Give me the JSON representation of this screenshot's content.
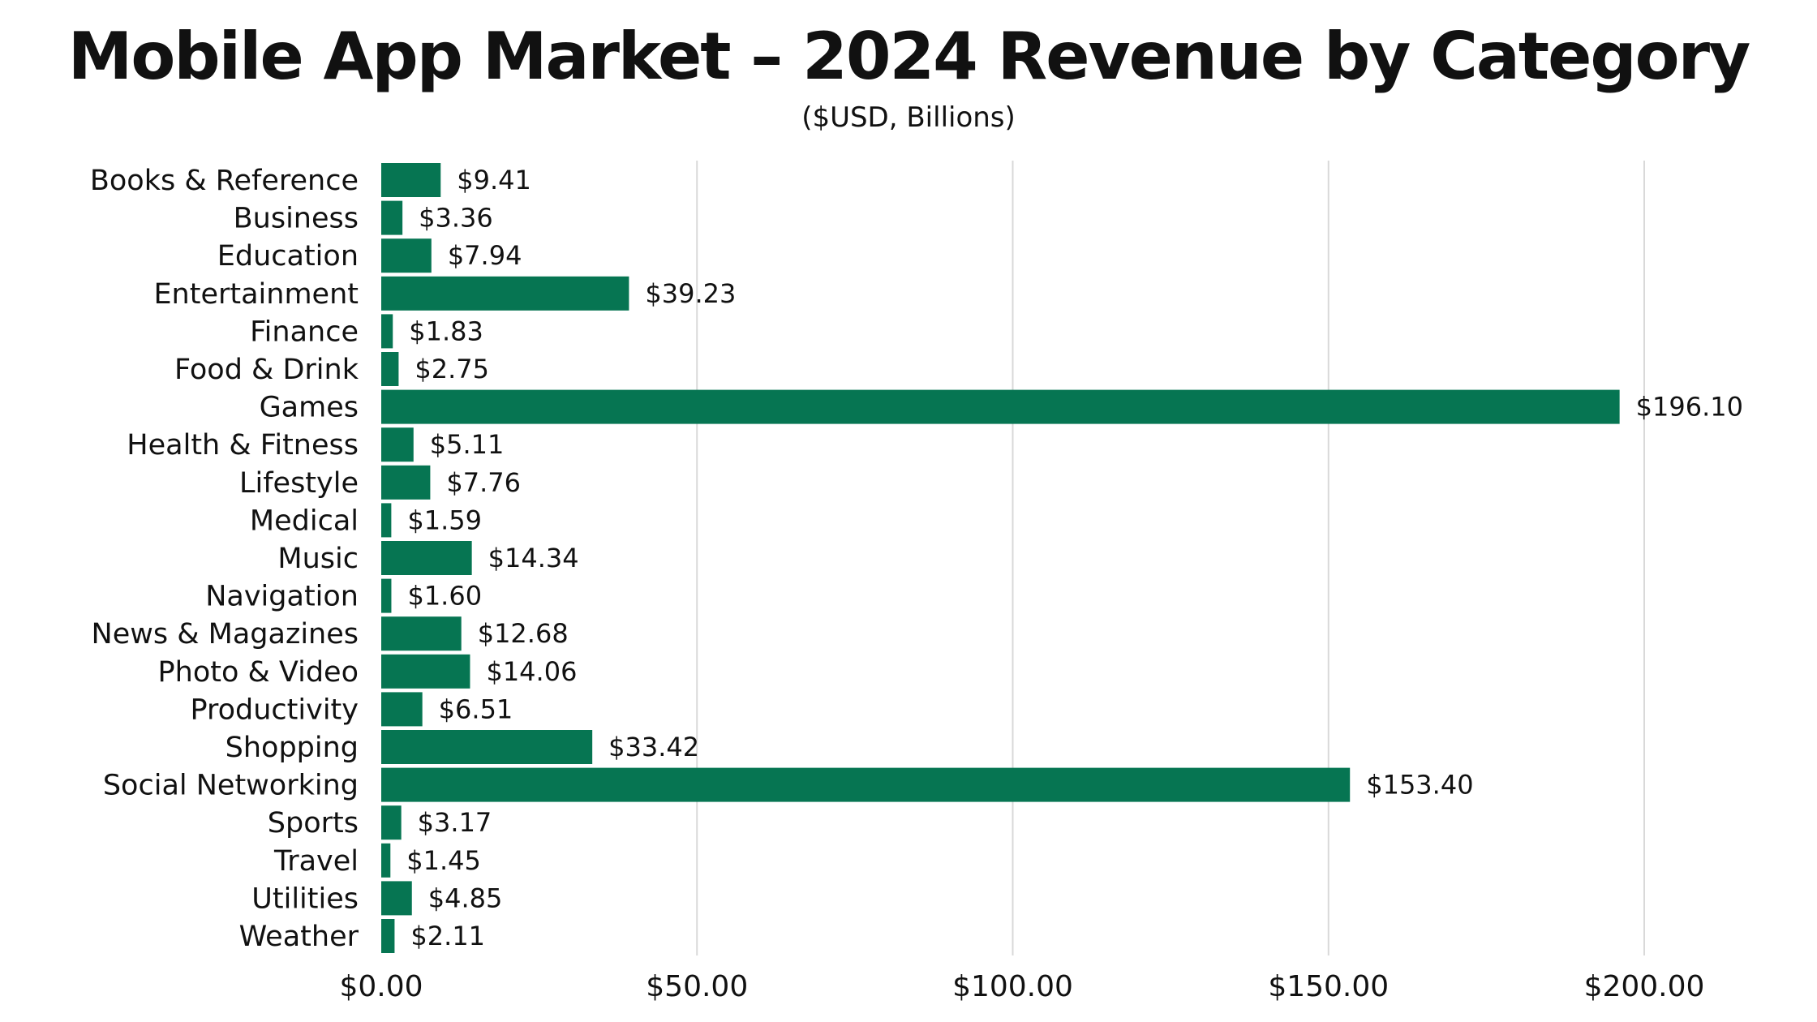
{
  "chart_data": {
    "type": "bar",
    "orientation": "horizontal",
    "title": "Mobile App Market – 2024 Revenue by Category",
    "subtitle": "($USD, Billions)",
    "categories": [
      "Books & Reference",
      "Business",
      "Education",
      "Entertainment",
      "Finance",
      "Food & Drink",
      "Games",
      "Health & Fitness",
      "Lifestyle",
      "Medical",
      "Music",
      "Navigation",
      "News & Magazines",
      "Photo & Video",
      "Productivity",
      "Shopping",
      "Social Networking",
      "Sports",
      "Travel",
      "Utilities",
      "Weather"
    ],
    "values": [
      9.41,
      3.36,
      7.94,
      39.23,
      1.83,
      2.75,
      196.1,
      5.11,
      7.76,
      1.59,
      14.34,
      1.6,
      12.68,
      14.06,
      6.51,
      33.42,
      153.4,
      3.17,
      1.45,
      4.85,
      2.11
    ],
    "value_labels": [
      "$9.41",
      "$3.36",
      "$7.94",
      "$39.23",
      "$1.83",
      "$2.75",
      "$196.10",
      "$5.11",
      "$7.76",
      "$1.59",
      "$14.34",
      "$1.60",
      "$12.68",
      "$14.06",
      "$6.51",
      "$33.42",
      "$153.40",
      "$3.17",
      "$1.45",
      "$4.85",
      "$2.11"
    ],
    "xlim": [
      0,
      200
    ],
    "xticks": [
      0,
      50,
      100,
      150,
      200
    ],
    "xtick_labels": [
      "$0.00",
      "$50.00",
      "$100.00",
      "$150.00",
      "$200.00"
    ],
    "grid": true,
    "bar_color": "#067552",
    "grid_color": "#d9d9d9"
  }
}
